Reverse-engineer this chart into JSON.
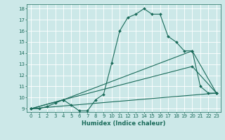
{
  "bg_color": "#cce8e8",
  "grid_color": "#ffffff",
  "line_color": "#1a6b5a",
  "xlabel": "Humidex (Indice chaleur)",
  "xlim": [
    -0.5,
    23.5
  ],
  "ylim": [
    8.7,
    18.4
  ],
  "yticks": [
    9,
    10,
    11,
    12,
    13,
    14,
    15,
    16,
    17,
    18
  ],
  "xticks": [
    0,
    1,
    2,
    3,
    4,
    5,
    6,
    7,
    8,
    9,
    10,
    11,
    12,
    13,
    14,
    15,
    16,
    17,
    18,
    19,
    20,
    21,
    22,
    23
  ],
  "curve1_x": [
    0,
    1,
    2,
    3,
    4,
    5,
    6,
    7,
    8,
    9,
    10,
    11,
    12,
    13,
    14,
    15,
    16,
    17,
    18,
    19,
    20,
    21,
    22,
    23
  ],
  "curve1_y": [
    9.0,
    9.0,
    9.2,
    9.5,
    9.8,
    9.3,
    8.8,
    8.8,
    9.8,
    10.3,
    13.1,
    16.0,
    17.2,
    17.5,
    18.0,
    17.5,
    17.5,
    15.5,
    15.0,
    14.2,
    14.2,
    11.0,
    10.4,
    10.4
  ],
  "curve2_x": [
    0,
    4,
    20,
    23
  ],
  "curve2_y": [
    9.0,
    9.8,
    14.2,
    10.4
  ],
  "curve3_x": [
    0,
    4,
    20,
    23
  ],
  "curve3_y": [
    9.0,
    9.8,
    12.8,
    10.4
  ],
  "curve4_x": [
    0,
    23
  ],
  "curve4_y": [
    9.0,
    10.4
  ],
  "marker_size": 2.0,
  "linewidth": 0.8,
  "tick_fontsize": 5.0,
  "xlabel_fontsize": 6.0
}
